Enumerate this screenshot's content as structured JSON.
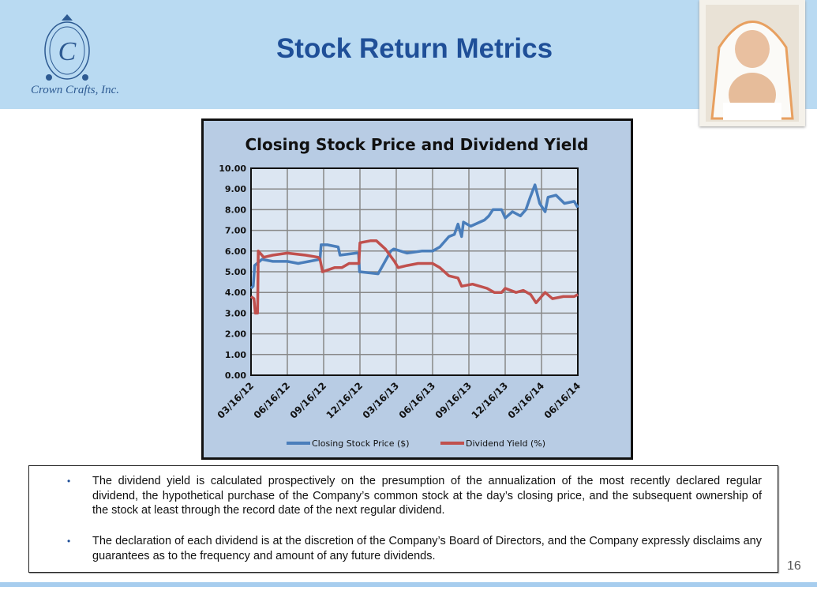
{
  "header": {
    "title": "Stock Return Metrics",
    "company": "Crown Crafts, Inc.",
    "logo_letters": "CROWN CRAFTS",
    "registered": "®"
  },
  "chart_data": {
    "type": "line",
    "title": "Closing Stock Price and Dividend Yield",
    "xlabel": "",
    "ylabel": "",
    "ylim": [
      0,
      10
    ],
    "yticks": [
      "0.00",
      "1.00",
      "2.00",
      "3.00",
      "4.00",
      "5.00",
      "6.00",
      "7.00",
      "8.00",
      "9.00",
      "10.00"
    ],
    "xticks": [
      "03/16/12",
      "06/16/12",
      "09/16/12",
      "12/16/12",
      "03/16/13",
      "06/16/13",
      "09/16/13",
      "12/16/13",
      "03/16/14",
      "06/16/14"
    ],
    "x_units": "quarters since 03/16/12",
    "grid": true,
    "legend": "bottom",
    "series": [
      {
        "name": "Closing Stock Price ($)",
        "color": "#4a7ebb",
        "points": [
          [
            0,
            4.2
          ],
          [
            0.06,
            4.3
          ],
          [
            0.1,
            5.3
          ],
          [
            0.3,
            5.6
          ],
          [
            0.6,
            5.5
          ],
          [
            1.0,
            5.5
          ],
          [
            1.3,
            5.4
          ],
          [
            1.6,
            5.5
          ],
          [
            1.9,
            5.6
          ],
          [
            1.93,
            6.3
          ],
          [
            2.1,
            6.3
          ],
          [
            2.4,
            6.2
          ],
          [
            2.45,
            5.8
          ],
          [
            2.9,
            5.9
          ],
          [
            2.96,
            5.9
          ],
          [
            2.99,
            5.0
          ],
          [
            3.5,
            4.9
          ],
          [
            3.85,
            6.0
          ],
          [
            3.93,
            6.1
          ],
          [
            4.3,
            5.9
          ],
          [
            4.7,
            6.0
          ],
          [
            5.0,
            6.0
          ],
          [
            5.2,
            6.2
          ],
          [
            5.45,
            6.7
          ],
          [
            5.6,
            6.8
          ],
          [
            5.7,
            7.3
          ],
          [
            5.8,
            6.7
          ],
          [
            5.85,
            7.4
          ],
          [
            6.05,
            7.2
          ],
          [
            6.43,
            7.5
          ],
          [
            6.55,
            7.7
          ],
          [
            6.66,
            8.0
          ],
          [
            6.9,
            8.0
          ],
          [
            7.0,
            7.6
          ],
          [
            7.2,
            7.9
          ],
          [
            7.42,
            7.7
          ],
          [
            7.57,
            8.0
          ],
          [
            7.69,
            8.6
          ],
          [
            7.82,
            9.2
          ],
          [
            7.95,
            8.3
          ],
          [
            8.1,
            7.9
          ],
          [
            8.18,
            8.6
          ],
          [
            8.4,
            8.7
          ],
          [
            8.63,
            8.3
          ],
          [
            8.9,
            8.4
          ],
          [
            9.0,
            8.1
          ]
        ]
      },
      {
        "name": "Dividend Yield (%)",
        "color": "#c0504d",
        "points": [
          [
            0,
            3.8
          ],
          [
            0.08,
            3.7
          ],
          [
            0.12,
            3.0
          ],
          [
            0.18,
            3.0
          ],
          [
            0.2,
            6.0
          ],
          [
            0.35,
            5.7
          ],
          [
            0.6,
            5.8
          ],
          [
            1.0,
            5.9
          ],
          [
            1.5,
            5.8
          ],
          [
            1.85,
            5.7
          ],
          [
            1.9,
            5.6
          ],
          [
            1.97,
            5.0
          ],
          [
            2.3,
            5.2
          ],
          [
            2.5,
            5.2
          ],
          [
            2.7,
            5.4
          ],
          [
            2.97,
            5.4
          ],
          [
            3.0,
            6.4
          ],
          [
            3.3,
            6.5
          ],
          [
            3.45,
            6.5
          ],
          [
            3.7,
            6.1
          ],
          [
            3.95,
            5.5
          ],
          [
            4.05,
            5.2
          ],
          [
            4.3,
            5.3
          ],
          [
            4.6,
            5.4
          ],
          [
            5.0,
            5.4
          ],
          [
            5.2,
            5.2
          ],
          [
            5.45,
            4.8
          ],
          [
            5.7,
            4.7
          ],
          [
            5.8,
            4.3
          ],
          [
            6.1,
            4.4
          ],
          [
            6.5,
            4.2
          ],
          [
            6.7,
            4.0
          ],
          [
            6.9,
            4.0
          ],
          [
            7.0,
            4.2
          ],
          [
            7.3,
            4.0
          ],
          [
            7.5,
            4.1
          ],
          [
            7.7,
            3.9
          ],
          [
            7.85,
            3.5
          ],
          [
            8.0,
            3.8
          ],
          [
            8.1,
            4.0
          ],
          [
            8.3,
            3.7
          ],
          [
            8.6,
            3.8
          ],
          [
            8.9,
            3.8
          ],
          [
            9.0,
            3.9
          ]
        ]
      }
    ]
  },
  "notes": {
    "bullet_char": "•",
    "items": [
      "The dividend yield is calculated prospectively on the presumption of the annualization of the most recently declared regular dividend, the hypothetical purchase of the Company’s common stock at the day’s closing price, and the subsequent ownership of the stock at least through the record date of the next regular dividend.",
      "The declaration of each dividend is at the discretion of the Company’s Board of Directors, and the Company expressly disclaims any guarantees as to the frequency and amount of any future dividends."
    ]
  },
  "page_number": "16"
}
